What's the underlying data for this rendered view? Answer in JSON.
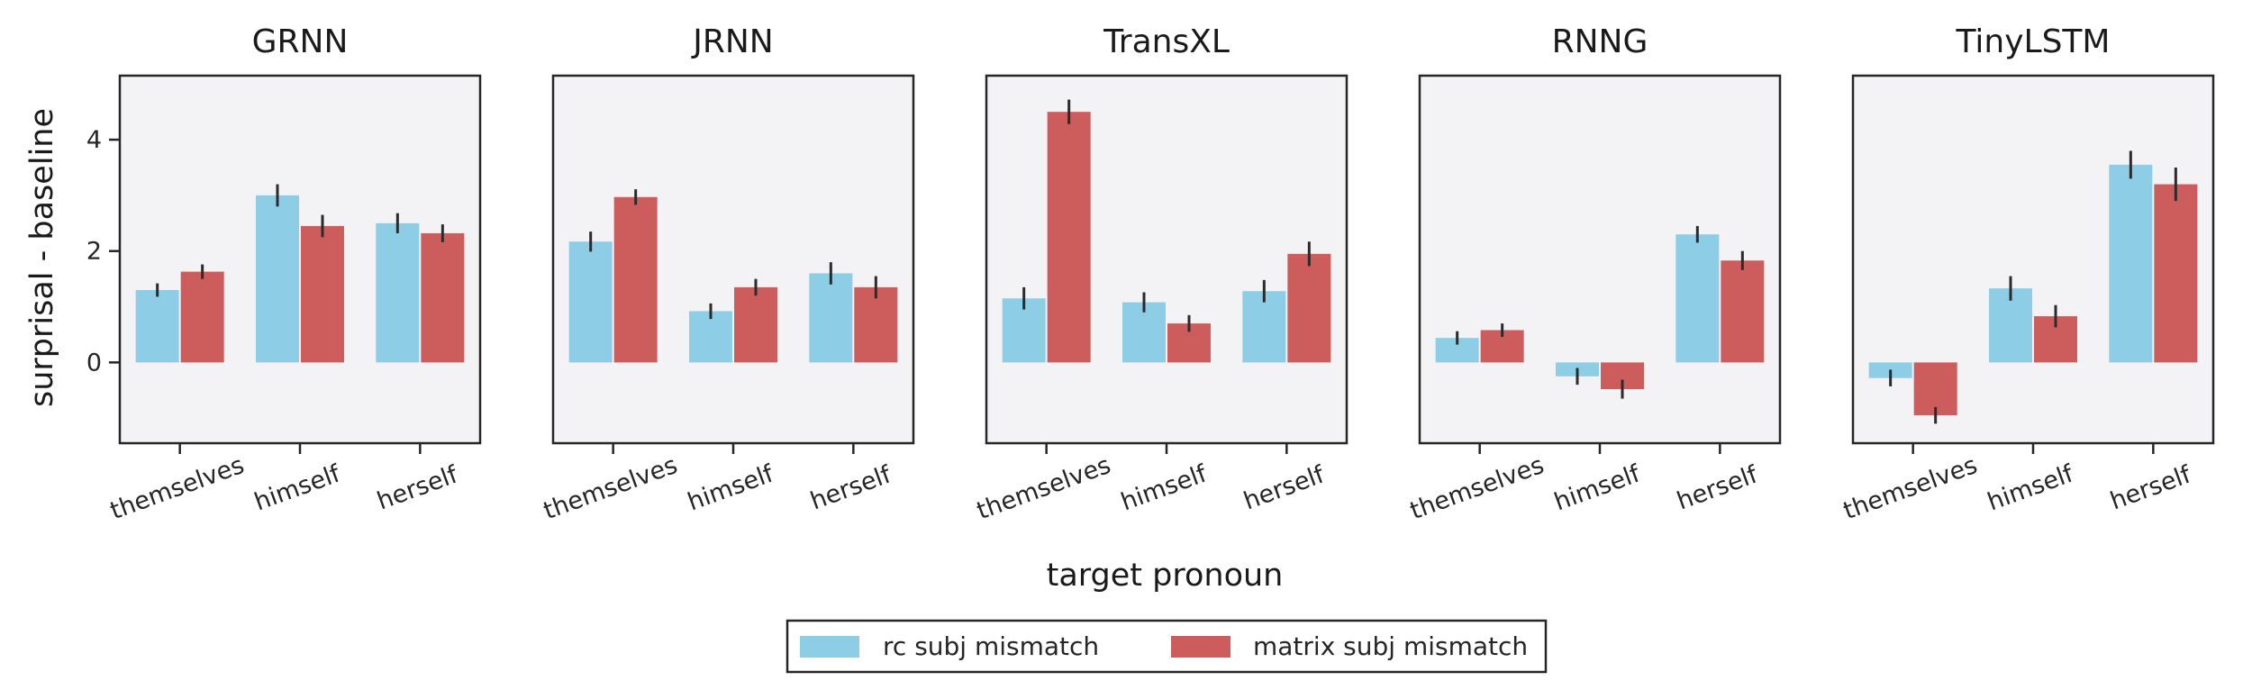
{
  "chart_data": {
    "type": "bar",
    "xlabel": "target pronoun",
    "ylabel": "surprisal - baseline",
    "ylim": [
      -1.45,
      5.15
    ],
    "yticks": [
      0,
      2,
      4
    ],
    "categories": [
      "themselves",
      "himself",
      "herself"
    ],
    "legend": {
      "placement": "bottom-center",
      "entries": [
        "rc subj mismatch",
        "matrix subj mismatch"
      ]
    },
    "colors": {
      "rc subj mismatch": "#8ecde6",
      "matrix subj mismatch": "#cd5c5c",
      "panel_bg": "#f3f2f5"
    },
    "panels": [
      {
        "title": "GRNN",
        "series": [
          {
            "name": "rc subj mismatch",
            "values": [
              1.3,
              3.0,
              2.5
            ],
            "err": [
              0.12,
              0.2,
              0.18
            ]
          },
          {
            "name": "matrix subj mismatch",
            "values": [
              1.63,
              2.45,
              2.32
            ],
            "err": [
              0.13,
              0.2,
              0.16
            ]
          }
        ]
      },
      {
        "title": "JRNN",
        "series": [
          {
            "name": "rc subj mismatch",
            "values": [
              2.17,
              0.92,
              1.6
            ],
            "err": [
              0.18,
              0.14,
              0.2
            ]
          },
          {
            "name": "matrix subj mismatch",
            "values": [
              2.97,
              1.35,
              1.35
            ],
            "err": [
              0.14,
              0.15,
              0.2
            ]
          }
        ]
      },
      {
        "title": "TransXL",
        "series": [
          {
            "name": "rc subj mismatch",
            "values": [
              1.15,
              1.08,
              1.28
            ],
            "err": [
              0.2,
              0.18,
              0.2
            ]
          },
          {
            "name": "matrix subj mismatch",
            "values": [
              4.5,
              0.7,
              1.95
            ],
            "err": [
              0.22,
              0.15,
              0.22
            ]
          }
        ]
      },
      {
        "title": "RNNG",
        "series": [
          {
            "name": "rc subj mismatch",
            "values": [
              0.44,
              -0.25,
              2.3
            ],
            "err": [
              0.12,
              0.15,
              0.15
            ]
          },
          {
            "name": "matrix subj mismatch",
            "values": [
              0.58,
              -0.48,
              1.83
            ],
            "err": [
              0.12,
              0.17,
              0.17
            ]
          }
        ]
      },
      {
        "title": "TinyLSTM",
        "series": [
          {
            "name": "rc subj mismatch",
            "values": [
              -0.28,
              1.33,
              3.55
            ],
            "err": [
              0.15,
              0.22,
              0.25
            ]
          },
          {
            "name": "matrix subj mismatch",
            "values": [
              -0.95,
              0.83,
              3.2
            ],
            "err": [
              0.15,
              0.2,
              0.3
            ]
          }
        ]
      }
    ]
  }
}
